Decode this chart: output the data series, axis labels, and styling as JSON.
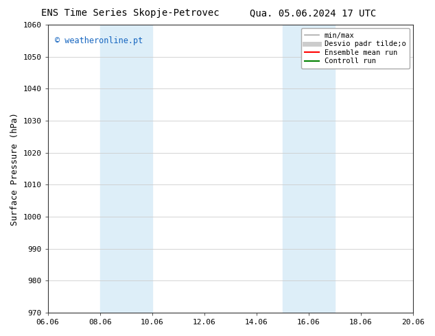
{
  "title_left": "ENS Time Series Skopje-Petrovec",
  "title_right": "Qua. 05.06.2024 17 UTC",
  "ylabel": "Surface Pressure (hPa)",
  "ylim": [
    970,
    1060
  ],
  "yticks": [
    970,
    980,
    990,
    1000,
    1010,
    1020,
    1030,
    1040,
    1050,
    1060
  ],
  "xtick_labels": [
    "06.06",
    "08.06",
    "10.06",
    "12.06",
    "14.06",
    "16.06",
    "18.06",
    "20.06"
  ],
  "xtick_positions": [
    0,
    2,
    4,
    6,
    8,
    10,
    12,
    14
  ],
  "xlim": [
    0,
    14
  ],
  "shaded_bands": [
    {
      "x_start": 2,
      "x_end": 4,
      "color": "#ddeef8"
    },
    {
      "x_start": 9,
      "x_end": 11,
      "color": "#ddeef8"
    }
  ],
  "watermark_text": "© weatheronline.pt",
  "watermark_color": "#1565c0",
  "background_color": "#ffffff",
  "plot_bg_color": "#ffffff",
  "legend_entries": [
    {
      "label": "min/max",
      "color": "#aaaaaa",
      "lw": 1.2,
      "style": "solid"
    },
    {
      "label": "Desvio padr tilde;o",
      "color": "#cccccc",
      "lw": 5,
      "style": "solid"
    },
    {
      "label": "Ensemble mean run",
      "color": "#ff0000",
      "lw": 1.5,
      "style": "solid"
    },
    {
      "label": "Controll run",
      "color": "#008000",
      "lw": 1.5,
      "style": "solid"
    }
  ],
  "title_fontsize": 10,
  "tick_fontsize": 8,
  "ylabel_fontsize": 9,
  "grid_color": "#cccccc",
  "legend_fontsize": 7.5,
  "watermark_fontsize": 8.5
}
